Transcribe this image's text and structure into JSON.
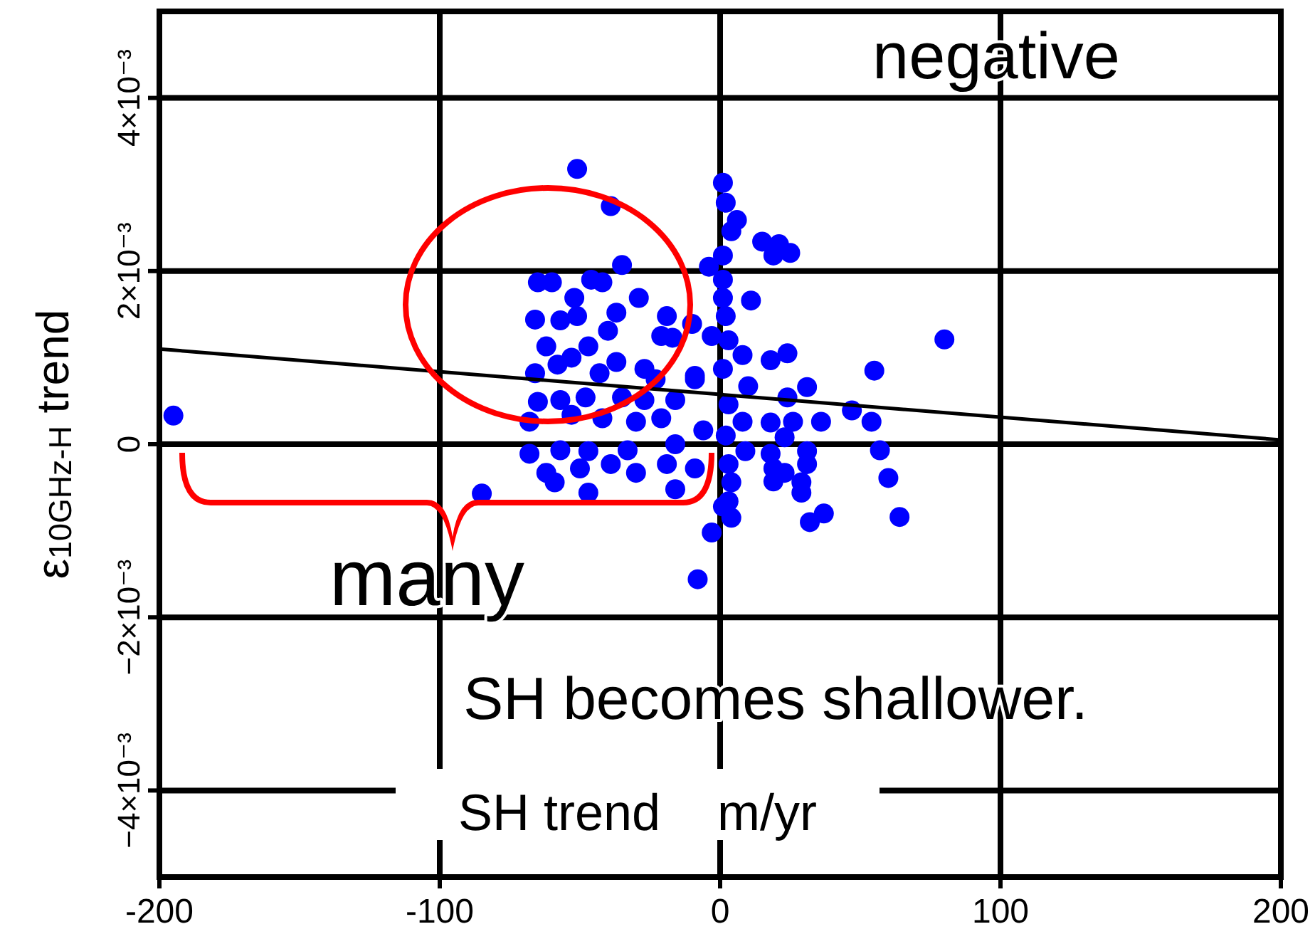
{
  "chart_data": {
    "type": "scatter",
    "xlabel": "SH trend    m/yr",
    "ylabel": "ε$_{10GHz-H}$ trend",
    "annotations": [
      "negative",
      "many",
      "SH becomes shallower."
    ],
    "xlim": [
      -200,
      200
    ],
    "xticks": [
      -200,
      -100,
      0,
      100,
      200
    ],
    "ylim": [
      -0.005,
      0.005
    ],
    "yticks": [
      {
        "value": -0.004,
        "label": "−4×10⁻³"
      },
      {
        "value": -0.002,
        "label": "−2×10⁻³"
      },
      {
        "value": 0,
        "label": "0"
      },
      {
        "value": 0.002,
        "label": "2×10⁻³"
      },
      {
        "value": 0.004,
        "label": "4×10⁻³"
      }
    ],
    "grid": true,
    "marker": "circle",
    "series": [
      {
        "color": "#0000ff",
        "x": [
          -195,
          -85,
          -51,
          -39,
          -8,
          -35,
          -65,
          -60,
          -46,
          -42,
          -29,
          -52,
          -66,
          -57,
          -51,
          -37,
          -19,
          -40,
          -62,
          -47,
          -21,
          -17,
          -10,
          -58,
          -53,
          -37,
          -27,
          -66,
          -43,
          -23,
          -9,
          -65,
          -57,
          -48,
          -35,
          -27,
          -16,
          -68,
          -53,
          -42,
          -30,
          -21,
          -6,
          -68,
          -57,
          -47,
          -33,
          -16,
          -62,
          -50,
          -39,
          -30,
          -19,
          -9,
          -59,
          -47,
          -16,
          -3,
          1,
          2,
          6,
          4,
          15,
          21,
          25,
          19,
          1,
          -4,
          1,
          11,
          1,
          2,
          -3,
          3,
          8,
          18,
          24,
          80,
          55,
          1,
          -9,
          10,
          31,
          24,
          47,
          3,
          8,
          18,
          26,
          36,
          54,
          2,
          23,
          9,
          18,
          31,
          57,
          3,
          19,
          31,
          23,
          60,
          4,
          29,
          19,
          29,
          3,
          4,
          37,
          32,
          64,
          1
        ],
        "values": [
          0.00033,
          -0.00057,
          0.00318,
          0.00275,
          -0.00156,
          0.00207,
          0.00187,
          0.00187,
          0.0019,
          0.00187,
          0.00169,
          0.00169,
          0.00144,
          0.00143,
          0.00148,
          0.00152,
          0.00148,
          0.00131,
          0.00113,
          0.00113,
          0.00125,
          0.00123,
          0.00139,
          0.00092,
          0.001,
          0.00095,
          0.00087,
          0.00082,
          0.00082,
          0.00075,
          0.00075,
          0.00049,
          0.00051,
          0.00054,
          0.00054,
          0.00051,
          0.00051,
          0.00026,
          0.00034,
          0.0003,
          0.00026,
          0.0003,
          0.00016,
          -0.00011,
          -7e-05,
          -8e-05,
          -7e-05,
          0,
          -0.00033,
          -0.00028,
          -0.00023,
          -0.00033,
          -0.00023,
          -0.00028,
          -0.00044,
          -0.00056,
          -0.00052,
          -0.00102,
          0.00302,
          0.00279,
          0.00259,
          0.00246,
          0.00234,
          0.00231,
          0.00221,
          0.00218,
          0.00218,
          0.00205,
          0.0019,
          0.00166,
          0.00169,
          0.00148,
          0.00125,
          0.0012,
          0.00103,
          0.00097,
          0.00105,
          0.00121,
          0.00085,
          0.00087,
          0.00079,
          0.00067,
          0.00066,
          0.00054,
          0.00039,
          0.00046,
          0.00026,
          0.00025,
          0.00026,
          0.00026,
          0.00026,
          0.0001,
          8e-05,
          -8e-05,
          -0.00011,
          -8e-05,
          -7e-05,
          -0.00023,
          -0.00028,
          -0.00023,
          -0.00033,
          -0.00039,
          -0.00044,
          -0.00044,
          -0.00043,
          -0.00056,
          -0.00066,
          -0.00085,
          -0.0008,
          -0.0009,
          -0.00084,
          -0.00072
        ]
      },
      {
        "type": "line",
        "marker": "none",
        "color": "#000000",
        "x": [
          -200,
          200
        ],
        "values": [
          0.0011,
          5e-05
        ]
      }
    ]
  }
}
